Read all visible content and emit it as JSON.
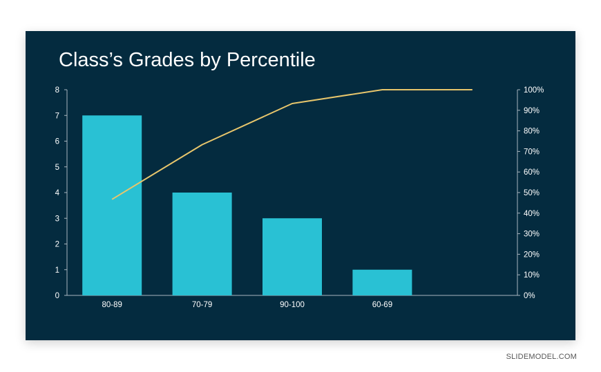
{
  "slide": {
    "title": "Class’s Grades by Percentile",
    "background": "#042b3f"
  },
  "watermark": "SLIDEMODEL.COM",
  "chart_data": {
    "type": "bar",
    "title": "Class’s Grades by Percentile",
    "categories": [
      "80-89",
      "70-79",
      "90-100",
      "60-69",
      ""
    ],
    "series": [
      {
        "type": "bar",
        "axis": "left",
        "color": "#29c1d4",
        "values": [
          7,
          4,
          3,
          1,
          null
        ]
      },
      {
        "type": "line",
        "axis": "right",
        "color": "#e8c66c",
        "values": [
          46.7,
          73.3,
          93.3,
          100,
          100
        ]
      }
    ],
    "y_left": {
      "min": 0,
      "max": 8,
      "ticks": [
        "0",
        "1",
        "2",
        "3",
        "4",
        "5",
        "6",
        "7",
        "8"
      ]
    },
    "y_right": {
      "min": 0,
      "max": 100,
      "ticks": [
        "0%",
        "10%",
        "20%",
        "30%",
        "40%",
        "50%",
        "60%",
        "70%",
        "80%",
        "90%",
        "100%"
      ]
    },
    "grid": false,
    "legend": "none",
    "axis_color": "#a9b6bf",
    "text_color": "#ffffff"
  }
}
